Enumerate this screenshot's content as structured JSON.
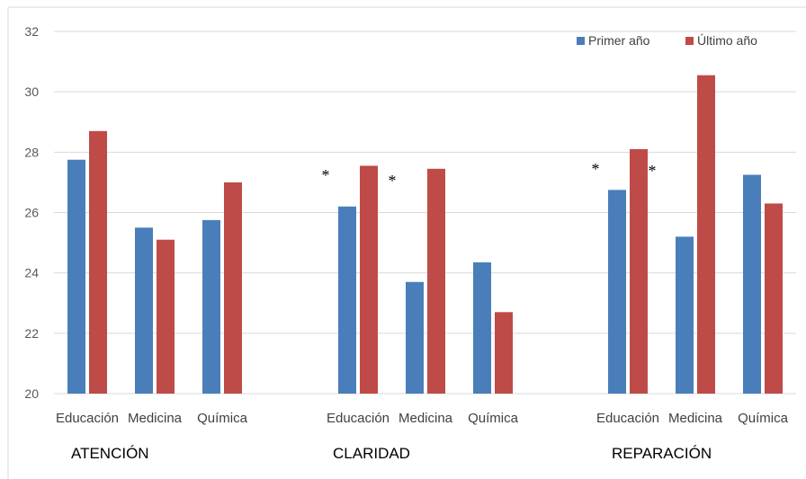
{
  "chart_data": {
    "type": "bar",
    "ylim": [
      20,
      32
    ],
    "yticks": [
      "20",
      "22",
      "24",
      "26",
      "28",
      "30",
      "32"
    ],
    "grid": true,
    "legend_position": "top-right",
    "series": [
      {
        "name": "Primer año",
        "color": "#4a7ebb"
      },
      {
        "name": "Último año",
        "color": "#be4b48"
      }
    ],
    "groups": [
      {
        "label": "ATENCIÓN",
        "categories": [
          "Educación",
          "Medicina",
          "Química"
        ],
        "values": [
          [
            27.75,
            28.7
          ],
          [
            25.5,
            25.1
          ],
          [
            25.75,
            27.0
          ]
        ],
        "significance": [
          "",
          "",
          ""
        ]
      },
      {
        "label": "CLARIDAD",
        "categories": [
          "Educación",
          "Medicina",
          "Química"
        ],
        "values": [
          [
            26.2,
            27.55
          ],
          [
            23.7,
            27.45
          ],
          [
            24.35,
            22.7
          ]
        ],
        "significance": [
          "*",
          "*",
          ""
        ]
      },
      {
        "label": "REPARACIÓN",
        "categories": [
          "Educación",
          "Medicina",
          "Química"
        ],
        "values": [
          [
            26.75,
            28.1
          ],
          [
            25.2,
            30.55
          ],
          [
            27.25,
            26.3
          ]
        ],
        "significance": [
          "* *",
          "",
          ""
        ]
      }
    ]
  }
}
